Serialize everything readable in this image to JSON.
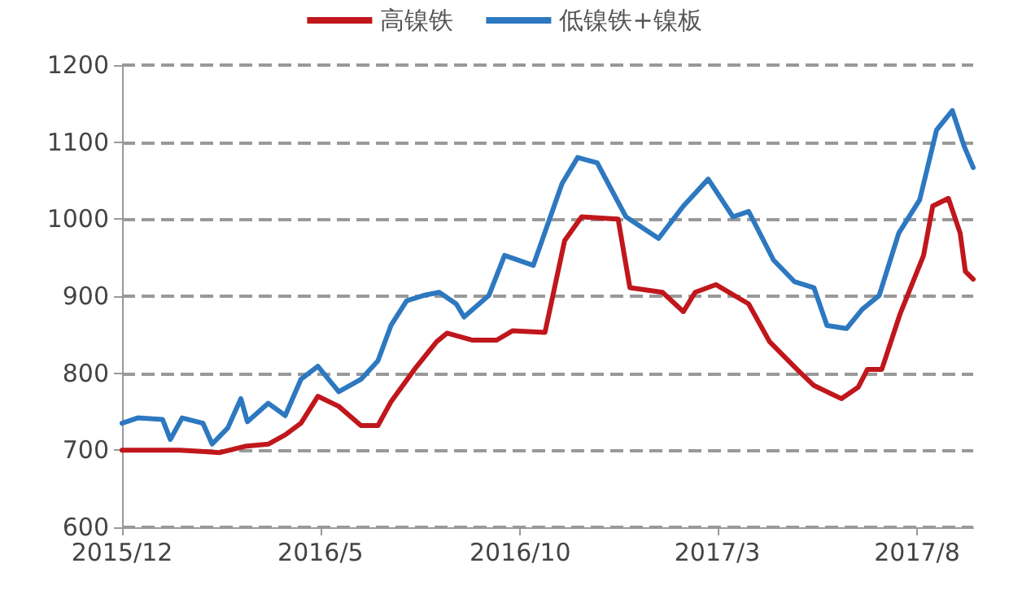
{
  "chart_data": {
    "type": "line",
    "legend": "top",
    "grid": "y",
    "marker": "none",
    "line_style": "solid",
    "ylim": [
      600,
      1200
    ],
    "yticks": [
      600,
      700,
      800,
      900,
      1000,
      1100,
      1200
    ],
    "xlim": [
      "2015-12-01",
      "2017-09-13"
    ],
    "xticks": [
      {
        "value": "2015-12-01",
        "label": "2015/12"
      },
      {
        "value": "2016-05-01",
        "label": "2016/5"
      },
      {
        "value": "2016-10-01",
        "label": "2016/10"
      },
      {
        "value": "2017-03-01",
        "label": "2017/3"
      },
      {
        "value": "2017-08-01",
        "label": "2017/8"
      }
    ],
    "series": [
      {
        "name": "高镍铁",
        "color": "#c0171c",
        "x": [
          "2015-12-01",
          "2016-01-14",
          "2016-02-14",
          "2016-03-04",
          "2016-03-22",
          "2016-04-04",
          "2016-04-16",
          "2016-04-29",
          "2016-05-15",
          "2016-06-01",
          "2016-06-14",
          "2016-06-24",
          "2016-07-12",
          "2016-07-29",
          "2016-08-06",
          "2016-08-25",
          "2016-09-13",
          "2016-09-25",
          "2016-10-20",
          "2016-11-04",
          "2016-11-17",
          "2016-12-15",
          "2016-12-24",
          "2017-01-18",
          "2017-02-03",
          "2017-02-12",
          "2017-02-28",
          "2017-03-25",
          "2017-04-10",
          "2017-05-01",
          "2017-05-14",
          "2017-06-04",
          "2017-06-17",
          "2017-06-24",
          "2017-07-05",
          "2017-07-19",
          "2017-08-06",
          "2017-08-13",
          "2017-08-25",
          "2017-09-03",
          "2017-09-07",
          "2017-09-13"
        ],
        "values": [
          700,
          700,
          697,
          705,
          708,
          720,
          735,
          770,
          757,
          732,
          732,
          763,
          805,
          841,
          852,
          843,
          843,
          855,
          853,
          972,
          1003,
          1000,
          911,
          905,
          880,
          905,
          915,
          890,
          841,
          805,
          784,
          767,
          782,
          805,
          805,
          877,
          953,
          1017,
          1027,
          982,
          932,
          922
        ]
      },
      {
        "name": "低镍铁+镍板",
        "color": "#2d78c0",
        "x": [
          "2015-12-01",
          "2015-12-13",
          "2016-01-01",
          "2016-01-07",
          "2016-01-16",
          "2016-02-01",
          "2016-02-08",
          "2016-02-20",
          "2016-03-01",
          "2016-03-06",
          "2016-03-22",
          "2016-04-04",
          "2016-04-16",
          "2016-04-29",
          "2016-05-15",
          "2016-06-01",
          "2016-06-14",
          "2016-06-24",
          "2016-07-06",
          "2016-07-19",
          "2016-07-31",
          "2016-08-13",
          "2016-08-19",
          "2016-09-07",
          "2016-09-19",
          "2016-10-11",
          "2016-11-02",
          "2016-11-14",
          "2016-11-29",
          "2016-12-21",
          "2017-01-15",
          "2017-02-03",
          "2017-02-22",
          "2017-03-13",
          "2017-03-25",
          "2017-04-13",
          "2017-04-29",
          "2017-05-14",
          "2017-05-24",
          "2017-06-08",
          "2017-06-20",
          "2017-07-03",
          "2017-07-18",
          "2017-08-03",
          "2017-08-16",
          "2017-08-28",
          "2017-09-06",
          "2017-09-13"
        ],
        "values": [
          735,
          742,
          740,
          714,
          742,
          735,
          708,
          729,
          767,
          737,
          761,
          745,
          792,
          809,
          776,
          792,
          816,
          862,
          894,
          901,
          905,
          890,
          873,
          901,
          953,
          940,
          1046,
          1080,
          1073,
          1003,
          975,
          1017,
          1052,
          1003,
          1010,
          947,
          919,
          911,
          862,
          858,
          883,
          901,
          982,
          1025,
          1116,
          1141,
          1095,
          1067
        ]
      }
    ]
  }
}
